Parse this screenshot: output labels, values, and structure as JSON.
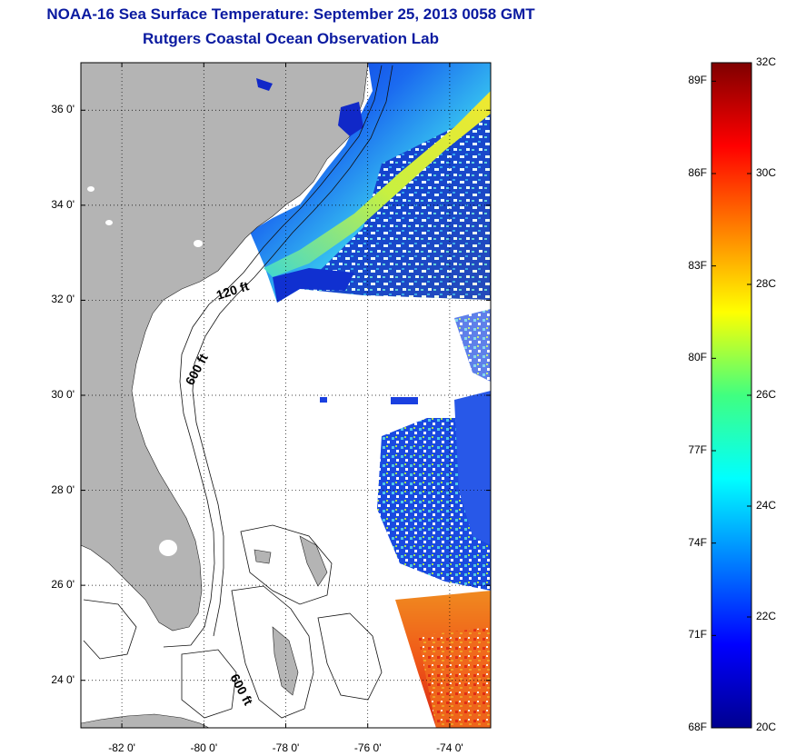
{
  "title_line1": "NOAA-16 Sea Surface Temperature:  September 25, 2013 0058 GMT",
  "title_line2": "Rutgers Coastal Ocean Observation Lab",
  "map": {
    "lat_ticks": [
      {
        "value": 36,
        "label": "36 0'"
      },
      {
        "value": 34,
        "label": "34 0'"
      },
      {
        "value": 32,
        "label": "32 0'"
      },
      {
        "value": 30,
        "label": "30 0'"
      },
      {
        "value": 28,
        "label": "28 0'"
      },
      {
        "value": 26,
        "label": "26 0'"
      },
      {
        "value": 24,
        "label": "24 0'"
      }
    ],
    "lon_ticks": [
      {
        "value": -82,
        "label": "-82 0'"
      },
      {
        "value": -80,
        "label": "-80 0'"
      },
      {
        "value": -78,
        "label": "-78 0'"
      },
      {
        "value": -76,
        "label": "-76 0'"
      },
      {
        "value": -74,
        "label": "-74 0'"
      }
    ],
    "lat_range": [
      23,
      37
    ],
    "lon_range": [
      -83,
      -73
    ],
    "contour_labels": [
      "120 ft",
      "600 ft",
      "600 ft"
    ],
    "land_color": "#b4b4b4",
    "grid": "dotted"
  },
  "colorbar": {
    "min_c": 20,
    "max_c": 32,
    "celsius_ticks": [
      {
        "value": 32,
        "label": "32C"
      },
      {
        "value": 30,
        "label": "30C"
      },
      {
        "value": 28,
        "label": "28C"
      },
      {
        "value": 26,
        "label": "26C"
      },
      {
        "value": 24,
        "label": "24C"
      },
      {
        "value": 22,
        "label": "22C"
      },
      {
        "value": 20,
        "label": "20C"
      }
    ],
    "fahrenheit_ticks": [
      {
        "value": 89,
        "label": "89F"
      },
      {
        "value": 86,
        "label": "86F"
      },
      {
        "value": 83,
        "label": "83F"
      },
      {
        "value": 80,
        "label": "80F"
      },
      {
        "value": 77,
        "label": "77F"
      },
      {
        "value": 74,
        "label": "74F"
      },
      {
        "value": 71,
        "label": "71F"
      },
      {
        "value": 68,
        "label": "68F"
      }
    ],
    "colormap": "jet"
  }
}
